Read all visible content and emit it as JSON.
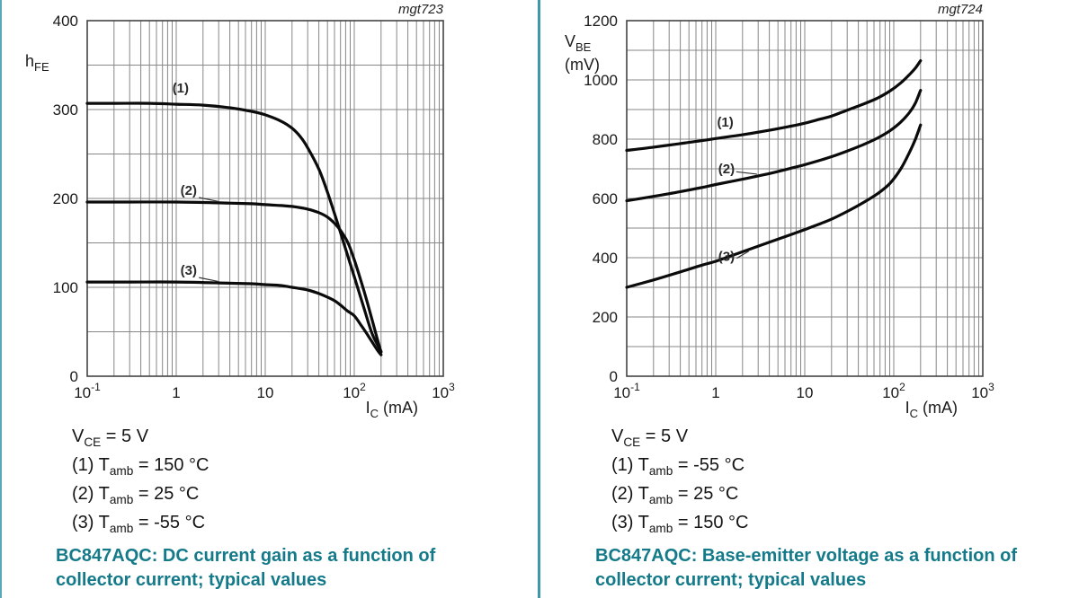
{
  "colors": {
    "accent_teal": "#147a8a",
    "divider_teal": "#3d98a8",
    "grid_gray": "#878787",
    "curve_black": "#0b0b0b"
  },
  "panels": [
    {
      "figure_id": "mgt723",
      "conditions": [
        [
          "V",
          {
            "sub": "CE"
          },
          " = 5 V"
        ],
        [
          "(1) T",
          {
            "sub": "amb"
          },
          " = 150 °C"
        ],
        [
          "(2) T",
          {
            "sub": "amb"
          },
          " = 25 °C"
        ],
        [
          "(3) T",
          {
            "sub": "amb"
          },
          " = -55 °C"
        ]
      ],
      "caption": "BC847AQC: DC current gain as a function of collector current; typical values"
    },
    {
      "figure_id": "mgt724",
      "conditions": [
        [
          "V",
          {
            "sub": "CE"
          },
          " = 5 V"
        ],
        [
          "(1) T",
          {
            "sub": "amb"
          },
          " = -55 °C"
        ],
        [
          "(2) T",
          {
            "sub": "amb"
          },
          " = 25 °C"
        ],
        [
          "(3) T",
          {
            "sub": "amb"
          },
          " = 150 °C"
        ]
      ],
      "caption": "BC847AQC: Base-emitter voltage as a function of collector current; typical values"
    }
  ],
  "chart_data": [
    {
      "type": "line",
      "title": "BC847AQC: DC current gain as a function of collector current; typical values",
      "watermark": "mgt723",
      "xlabel": "IC (mA)",
      "ylabel": "hFE",
      "x_scale": "log",
      "xlim": [
        0.1,
        1000
      ],
      "ylim": [
        0,
        400
      ],
      "y_minor_step": 50,
      "y_tick_values": [
        0,
        100,
        200,
        300,
        400
      ],
      "x_tick_values": [
        0.1,
        1,
        10,
        100,
        1000
      ],
      "x_tick_labels": [
        {
          "base": "10",
          "sup": "-1"
        },
        {
          "base": "1"
        },
        {
          "base": "10"
        },
        {
          "base": "10",
          "sup": "2"
        },
        {
          "base": "10",
          "sup": "3"
        }
      ],
      "ylabel_lines": [
        [
          "h",
          {
            "sub": "FE"
          }
        ]
      ],
      "ylabel_y": 74,
      "xlabel_segments": [
        "I",
        {
          "sub": "C"
        },
        " (mA)"
      ],
      "series": [
        {
          "name": "(1) Tamb = 150 °C",
          "points": [
            [
              0.1,
              307
            ],
            [
              0.2,
              307
            ],
            [
              0.5,
              307
            ],
            [
              1,
              306
            ],
            [
              2,
              305
            ],
            [
              4,
              302
            ],
            [
              7,
              298
            ],
            [
              10,
              294
            ],
            [
              15,
              287
            ],
            [
              20,
              279
            ],
            [
              25,
              269
            ],
            [
              30,
              257
            ],
            [
              40,
              233
            ],
            [
              50,
              207
            ],
            [
              65,
              172
            ],
            [
              80,
              143
            ],
            [
              100,
              112
            ],
            [
              130,
              75
            ],
            [
              160,
              47
            ],
            [
              200,
              28
            ]
          ]
        },
        {
          "name": "(2) Tamb = 25 °C",
          "points": [
            [
              0.1,
              196
            ],
            [
              0.3,
              196
            ],
            [
              1,
              196
            ],
            [
              3,
              195
            ],
            [
              7,
              194
            ],
            [
              10,
              193
            ],
            [
              15,
              192
            ],
            [
              20,
              191
            ],
            [
              30,
              188
            ],
            [
              40,
              184
            ],
            [
              50,
              179
            ],
            [
              60,
              172
            ],
            [
              70,
              164
            ],
            [
              85,
              150
            ],
            [
              100,
              131
            ],
            [
              120,
              106
            ],
            [
              140,
              83
            ],
            [
              160,
              62
            ],
            [
              180,
              43
            ],
            [
              200,
              27
            ]
          ]
        },
        {
          "name": "(3) Tamb = -55 °C",
          "points": [
            [
              0.1,
              106
            ],
            [
              0.3,
              106
            ],
            [
              1,
              106
            ],
            [
              3,
              105
            ],
            [
              7,
              104
            ],
            [
              10,
              103
            ],
            [
              15,
              102
            ],
            [
              20,
              100
            ],
            [
              30,
              97
            ],
            [
              40,
              93
            ],
            [
              50,
              89
            ],
            [
              60,
              85
            ],
            [
              70,
              80
            ],
            [
              85,
              73
            ],
            [
              100,
              68
            ],
            [
              120,
              57
            ],
            [
              140,
              47
            ],
            [
              160,
              38
            ],
            [
              180,
              30
            ],
            [
              200,
              24
            ]
          ]
        }
      ],
      "curve_labels": [
        {
          "text": "(1)",
          "x": 1.12,
          "y": 324
        },
        {
          "text": "(2)",
          "x": 1.38,
          "y": 209,
          "leader": [
            [
              1.8,
              201
            ],
            [
              3.0,
              196.5
            ]
          ]
        },
        {
          "text": "(3)",
          "x": 1.38,
          "y": 119,
          "leader": [
            [
              1.8,
              111
            ],
            [
              3.0,
              106.5
            ]
          ]
        }
      ]
    },
    {
      "type": "line",
      "title": "BC847AQC: Base-emitter voltage as a function of collector current; typical values",
      "watermark": "mgt724",
      "xlabel": "IC (mA)",
      "ylabel": "VBE (mV)",
      "x_scale": "log",
      "xlim": [
        0.1,
        1000
      ],
      "ylim": [
        0,
        1200
      ],
      "y_minor_step": 100,
      "y_tick_values": [
        0,
        200,
        400,
        600,
        800,
        1000,
        1200
      ],
      "x_tick_values": [
        0.1,
        1,
        10,
        100,
        1000
      ],
      "x_tick_labels": [
        {
          "base": "10",
          "sup": "-1"
        },
        {
          "base": "1"
        },
        {
          "base": "10"
        },
        {
          "base": "10",
          "sup": "2"
        },
        {
          "base": "10",
          "sup": "3"
        }
      ],
      "ylabel_lines": [
        [
          "V",
          {
            "sub": "BE"
          }
        ],
        [
          "(mV)"
        ]
      ],
      "ylabel_y": 52,
      "xlabel_segments": [
        "I",
        {
          "sub": "C"
        },
        " (mA)"
      ],
      "series": [
        {
          "name": "(1) Tamb = -55 °C",
          "points": [
            [
              0.1,
              762
            ],
            [
              0.2,
              773
            ],
            [
              0.4,
              785
            ],
            [
              0.7,
              795
            ],
            [
              1,
              802
            ],
            [
              2,
              815
            ],
            [
              4,
              830
            ],
            [
              7,
              844
            ],
            [
              10,
              854
            ],
            [
              15,
              868
            ],
            [
              20,
              878
            ],
            [
              30,
              898
            ],
            [
              45,
              918
            ],
            [
              65,
              938
            ],
            [
              90,
              962
            ],
            [
              120,
              990
            ],
            [
              150,
              1018
            ],
            [
              175,
              1040
            ],
            [
              200,
              1065
            ]
          ]
        },
        {
          "name": "(2) Tamb = 25 °C",
          "points": [
            [
              0.1,
              592
            ],
            [
              0.2,
              607
            ],
            [
              0.4,
              623
            ],
            [
              0.7,
              637
            ],
            [
              1,
              647
            ],
            [
              2,
              665
            ],
            [
              4,
              684
            ],
            [
              7,
              702
            ],
            [
              10,
              714
            ],
            [
              15,
              729
            ],
            [
              20,
              741
            ],
            [
              30,
              760
            ],
            [
              45,
              781
            ],
            [
              65,
              803
            ],
            [
              90,
              828
            ],
            [
              120,
              858
            ],
            [
              150,
              890
            ],
            [
              175,
              922
            ],
            [
              200,
              965
            ]
          ]
        },
        {
          "name": "(3) Tamb = 150 °C",
          "points": [
            [
              0.1,
              300
            ],
            [
              0.2,
              325
            ],
            [
              0.4,
              352
            ],
            [
              0.7,
              375
            ],
            [
              1,
              388
            ],
            [
              2,
              420
            ],
            [
              4,
              452
            ],
            [
              7,
              478
            ],
            [
              10,
              495
            ],
            [
              15,
              515
            ],
            [
              20,
              530
            ],
            [
              30,
              556
            ],
            [
              45,
              585
            ],
            [
              65,
              615
            ],
            [
              90,
              650
            ],
            [
              120,
              700
            ],
            [
              150,
              755
            ],
            [
              175,
              800
            ],
            [
              200,
              848
            ]
          ]
        }
      ],
      "curve_labels": [
        {
          "text": "(1)",
          "x": 1.28,
          "y": 858
        },
        {
          "text": "(2)",
          "x": 1.32,
          "y": 700,
          "leader": [
            [
              1.7,
              690
            ],
            [
              2.9,
              682
            ]
          ]
        },
        {
          "text": "(3)",
          "x": 1.32,
          "y": 404,
          "leader": [
            [
              1.72,
              398
            ],
            [
              2.35,
              422
            ]
          ]
        }
      ]
    }
  ]
}
